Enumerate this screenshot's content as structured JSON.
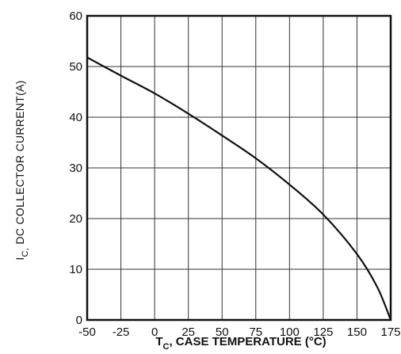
{
  "chart_data": {
    "type": "line",
    "title": "",
    "xlabel": {
      "main": "T",
      "subscript": "C",
      "rest": ", CASE TEMPERATURE (°C)"
    },
    "ylabel": {
      "main": "I",
      "subscript": "C,",
      "rest": " DC  COLLECTOR  CURRENT(A)"
    },
    "xlim": [
      -50,
      175
    ],
    "ylim": [
      0,
      60
    ],
    "x_ticks": [
      -50,
      -25,
      0,
      25,
      50,
      75,
      100,
      125,
      150,
      175
    ],
    "x_tick_labels": [
      "-50",
      "-25",
      "0",
      "25",
      "50",
      "75",
      "100",
      "125",
      "150",
      "175"
    ],
    "y_ticks": [
      0,
      10,
      20,
      30,
      40,
      50,
      60
    ],
    "y_tick_labels": [
      "0",
      "10",
      "20",
      "30",
      "40",
      "50",
      "60"
    ],
    "grid": true,
    "series": [
      {
        "x": [
          -50,
          -25,
          0,
          25,
          50,
          75,
          100,
          125,
          150,
          165,
          175
        ],
        "y": [
          51.8,
          48.2,
          44.7,
          40.7,
          36.4,
          31.9,
          26.7,
          20.8,
          13.0,
          6.5,
          0
        ]
      }
    ]
  }
}
